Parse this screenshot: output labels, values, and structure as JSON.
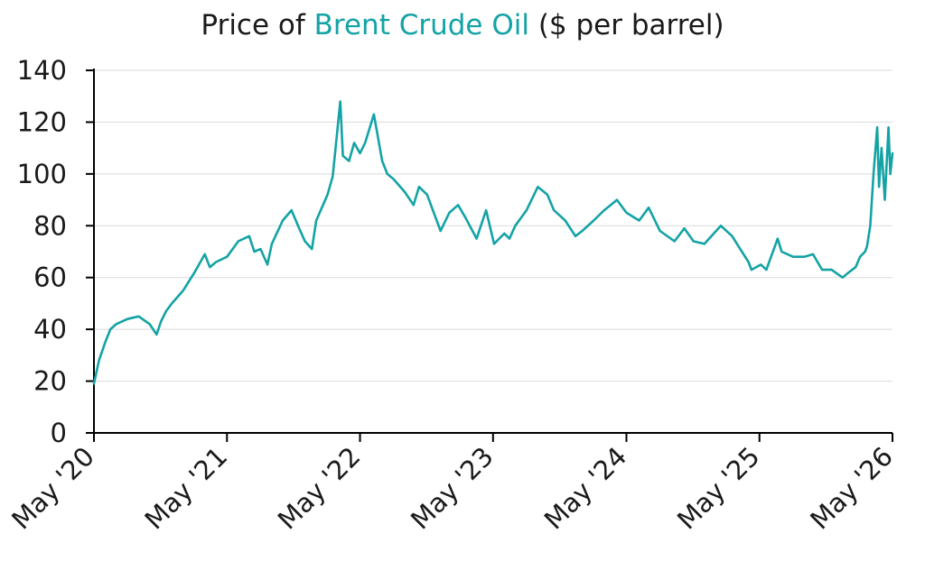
{
  "chart_data": {
    "type": "line",
    "title_parts": {
      "prefix": "Price of ",
      "highlight": "Brent Crude Oil",
      "suffix": " ($ per barrel)"
    },
    "xlabel": "",
    "ylabel": "",
    "ylim": [
      0,
      140
    ],
    "yticks": [
      0,
      20,
      40,
      60,
      80,
      100,
      120,
      140
    ],
    "xlim": [
      "2020-05-01",
      "2026-05-01"
    ],
    "xtick_labels": [
      "May '20",
      "May '21",
      "May '22",
      "May '23",
      "May '24",
      "May '25",
      "May '26"
    ],
    "grid": "horizontal",
    "legend": "none",
    "colors": {
      "series": "#14a3a5",
      "grid": "#d9d9d9",
      "axis": "#000000",
      "text": "#1a1a1a"
    },
    "series": [
      {
        "x": [
          "2020-05-01",
          "2020-05-15",
          "2020-06-01",
          "2020-06-15",
          "2020-07-01",
          "2020-08-01",
          "2020-09-01",
          "2020-10-01",
          "2020-10-20",
          "2020-11-01",
          "2020-11-15",
          "2020-12-01",
          "2021-01-01",
          "2021-02-01",
          "2021-03-01",
          "2021-03-15",
          "2021-04-01",
          "2021-05-01",
          "2021-06-01",
          "2021-07-01",
          "2021-07-15",
          "2021-08-01",
          "2021-08-20",
          "2021-09-01",
          "2021-10-01",
          "2021-10-25",
          "2021-11-15",
          "2021-12-01",
          "2021-12-20",
          "2022-01-01",
          "2022-02-01",
          "2022-02-15",
          "2022-03-08",
          "2022-03-15",
          "2022-04-01",
          "2022-04-15",
          "2022-05-01",
          "2022-05-15",
          "2022-06-08",
          "2022-07-01",
          "2022-07-15",
          "2022-08-01",
          "2022-09-01",
          "2022-09-25",
          "2022-10-10",
          "2022-11-01",
          "2022-12-08",
          "2023-01-01",
          "2023-01-25",
          "2023-02-15",
          "2023-03-17",
          "2023-04-12",
          "2023-05-04",
          "2023-06-01",
          "2023-06-15",
          "2023-07-01",
          "2023-08-01",
          "2023-09-01",
          "2023-09-27",
          "2023-10-15",
          "2023-11-15",
          "2023-12-13",
          "2024-01-01",
          "2024-02-01",
          "2024-03-01",
          "2024-04-05",
          "2024-05-01",
          "2024-06-05",
          "2024-07-01",
          "2024-08-01",
          "2024-09-10",
          "2024-10-07",
          "2024-11-01",
          "2024-12-01",
          "2025-01-15",
          "2025-02-15",
          "2025-03-05",
          "2025-04-01",
          "2025-04-09",
          "2025-05-05",
          "2025-05-20",
          "2025-06-20",
          "2025-07-01",
          "2025-08-01",
          "2025-09-01",
          "2025-09-25",
          "2025-10-20",
          "2025-11-15",
          "2025-12-15",
          "2026-01-01",
          "2026-01-20",
          "2026-02-01",
          "2026-02-15",
          "2026-02-20",
          "2026-03-01",
          "2026-03-10",
          "2026-03-20",
          "2026-03-25",
          "2026-04-01",
          "2026-04-10",
          "2026-04-20",
          "2026-04-25",
          "2026-05-01"
        ],
        "y": [
          19,
          28,
          35,
          40,
          42,
          44,
          45,
          42,
          38,
          43,
          47,
          50,
          55,
          62,
          69,
          64,
          66,
          68,
          74,
          76,
          70,
          71,
          65,
          73,
          82,
          86,
          79,
          74,
          71,
          82,
          92,
          99,
          128,
          107,
          105,
          112,
          108,
          112,
          123,
          105,
          100,
          98,
          93,
          88,
          95,
          92,
          78,
          85,
          88,
          83,
          75,
          86,
          73,
          77,
          75,
          80,
          86,
          95,
          92,
          86,
          82,
          76,
          78,
          82,
          86,
          90,
          85,
          82,
          87,
          78,
          74,
          79,
          74,
          73,
          80,
          76,
          72,
          66,
          63,
          65,
          63,
          75,
          70,
          68,
          68,
          69,
          63,
          63,
          60,
          62,
          64,
          68,
          70,
          72,
          80,
          100,
          118,
          95,
          110,
          90,
          118,
          100,
          108
        ]
      }
    ]
  }
}
